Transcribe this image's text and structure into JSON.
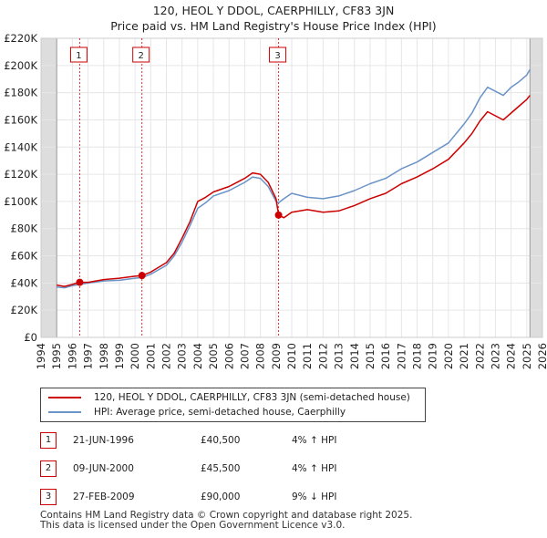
{
  "title_line1": "120, HEOL Y DDOL, CAERPHILLY, CF83 3JN",
  "title_line2": "Price paid vs. HM Land Registry's House Price Index (HPI)",
  "legend": [
    {
      "label": "120, HEOL Y DDOL, CAERPHILLY, CF83 3JN (semi-detached house)",
      "color": "#cc0000"
    },
    {
      "label": "HPI: Average price, semi-detached house, Caerphilly",
      "color": "#6a93c7"
    }
  ],
  "sales": [
    {
      "num": "1",
      "date": "21-JUN-1996",
      "price": "£40,500",
      "hpi": "4% ↑ HPI",
      "year": 1996.47,
      "value": 40500
    },
    {
      "num": "2",
      "date": "09-JUN-2000",
      "price": "£45,500",
      "hpi": "4% ↑ HPI",
      "year": 2000.44,
      "value": 45500
    },
    {
      "num": "3",
      "date": "27-FEB-2009",
      "price": "£90,000",
      "hpi": "9% ↓ HPI",
      "year": 2009.16,
      "value": 90000
    }
  ],
  "footer_line1": "Contains HM Land Registry data © Crown copyright and database right 2025.",
  "footer_line2": "This data is licensed under the Open Government Licence v3.0.",
  "chart_data": {
    "type": "line",
    "title": "120, HEOL Y DDOL, CAERPHILLY, CF83 3JN — Price paid vs. HM Land Registry's House Price Index (HPI)",
    "xlabel": "",
    "ylabel": "",
    "xlim": [
      1994,
      2026
    ],
    "ylim": [
      0,
      220000
    ],
    "x_ticks": [
      1994,
      1995,
      1996,
      1997,
      1998,
      1999,
      2000,
      2001,
      2002,
      2003,
      2004,
      2005,
      2006,
      2007,
      2008,
      2009,
      2010,
      2011,
      2012,
      2013,
      2014,
      2015,
      2016,
      2017,
      2018,
      2019,
      2020,
      2021,
      2022,
      2023,
      2024,
      2025,
      2026
    ],
    "y_ticks": [
      0,
      20000,
      40000,
      60000,
      80000,
      100000,
      120000,
      140000,
      160000,
      180000,
      200000,
      220000
    ],
    "y_tick_labels": [
      "£0",
      "£20K",
      "£40K",
      "£60K",
      "£80K",
      "£100K",
      "£120K",
      "£140K",
      "£160K",
      "£180K",
      "£200K",
      "£220K"
    ],
    "data_start": 1995.0,
    "data_end": 2025.2,
    "grid": true,
    "shaded_regions": [
      [
        1994,
        1995
      ],
      [
        2025.2,
        2026
      ]
    ],
    "series": [
      {
        "name": "120, HEOL Y DDOL, CAERPHILLY, CF83 3JN (semi-detached house)",
        "color": "#cc0000",
        "x": [
          1995,
          1995.5,
          1996,
          1996.47,
          1997,
          1998,
          1999,
          2000,
          2000.44,
          2001,
          2002,
          2002.5,
          2003,
          2003.5,
          2004,
          2004.5,
          2005,
          2006,
          2007,
          2007.5,
          2008,
          2008.5,
          2009,
          2009.16,
          2009.5,
          2010,
          2011,
          2012,
          2013,
          2014,
          2015,
          2016,
          2017,
          2018,
          2019,
          2020,
          2021,
          2021.5,
          2022,
          2022.5,
          2023,
          2023.5,
          2024,
          2024.5,
          2025,
          2025.2
        ],
        "y": [
          38500,
          37500,
          39000,
          40500,
          40500,
          42500,
          43500,
          45000,
          45500,
          48000,
          55000,
          62000,
          73000,
          85000,
          100000,
          103000,
          107000,
          111000,
          117000,
          121000,
          120000,
          114000,
          102000,
          90000,
          88000,
          92000,
          94000,
          92000,
          93000,
          97000,
          102000,
          106000,
          113000,
          118000,
          124000,
          131000,
          143000,
          150000,
          159000,
          166000,
          163000,
          160000,
          165000,
          170000,
          175000,
          178000
        ]
      },
      {
        "name": "HPI: Average price, semi-detached house, Caerphilly",
        "color": "#6a93c7",
        "x": [
          1995,
          1995.5,
          1996,
          1996.47,
          1997,
          1998,
          1999,
          2000,
          2000.44,
          2001,
          2002,
          2002.5,
          2003,
          2003.5,
          2004,
          2004.5,
          2005,
          2006,
          2007,
          2007.5,
          2008,
          2008.5,
          2009,
          2009.16,
          2009.5,
          2010,
          2011,
          2012,
          2013,
          2014,
          2015,
          2016,
          2017,
          2018,
          2019,
          2020,
          2021,
          2021.5,
          2022,
          2022.5,
          2023,
          2023.5,
          2024,
          2024.5,
          2025,
          2025.2
        ],
        "y": [
          37000,
          36500,
          38000,
          39000,
          40000,
          41500,
          42000,
          43500,
          44000,
          46500,
          53000,
          60000,
          70000,
          82000,
          95000,
          99000,
          104000,
          108000,
          114000,
          118000,
          117000,
          111000,
          100000,
          99000,
          102000,
          106000,
          103000,
          102000,
          104000,
          108000,
          113000,
          117000,
          124000,
          129000,
          136000,
          143000,
          157000,
          165000,
          176000,
          184000,
          181000,
          178000,
          184000,
          188000,
          193000,
          197000
        ]
      }
    ]
  }
}
